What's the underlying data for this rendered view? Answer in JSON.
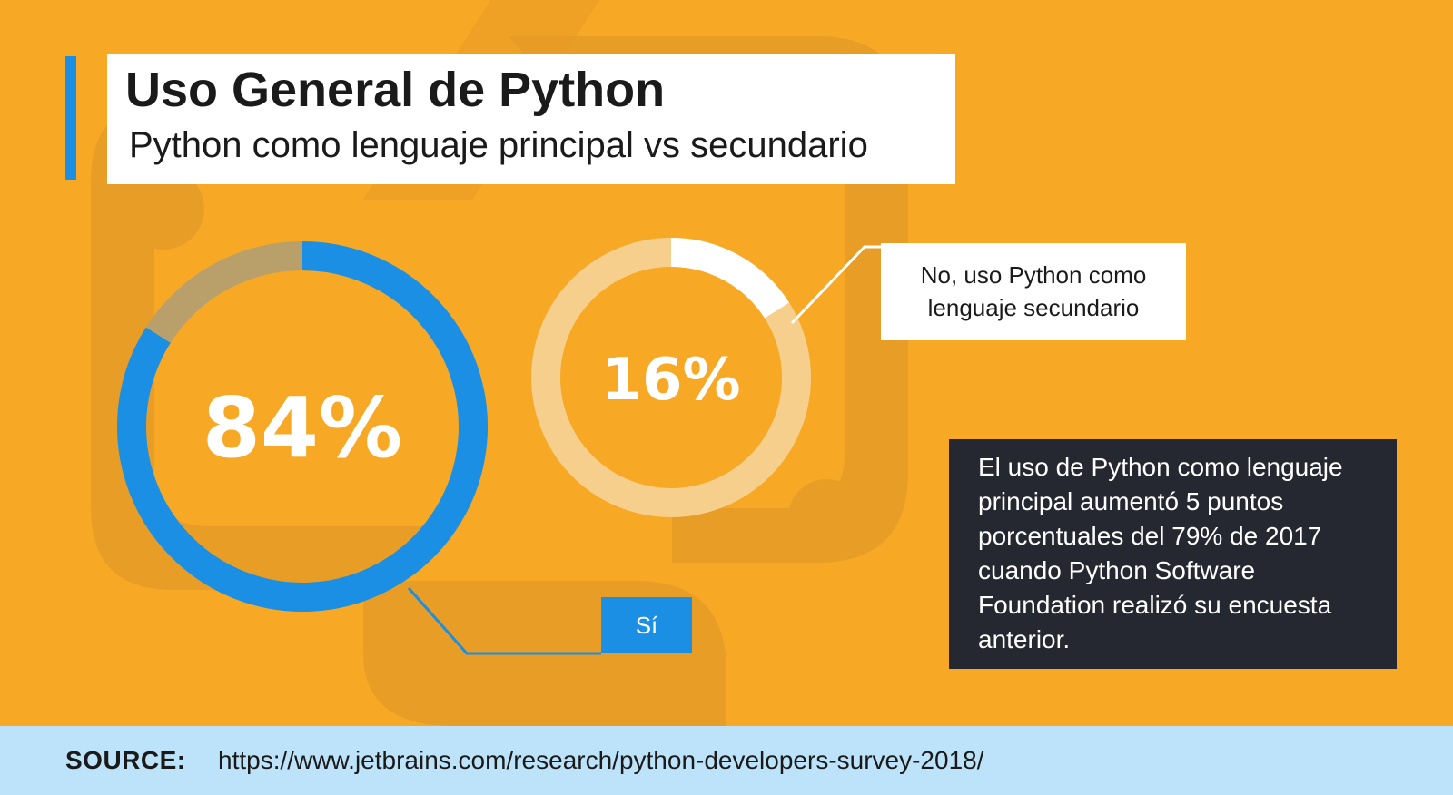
{
  "header": {
    "title": "Uso General de Python",
    "subtitle": "Python como lenguaje principal vs secundario"
  },
  "chart_data": [
    {
      "type": "pie",
      "variant": "donut",
      "value": 84,
      "center_label": "84%",
      "callout": "Sí",
      "color": "#1a8fe3",
      "remainder_color": "#b9a06a"
    },
    {
      "type": "pie",
      "variant": "donut",
      "value": 16,
      "center_label": "16%",
      "callout": "No, uso Python como lenguaje secundario",
      "color": "#ffffff",
      "remainder_color": "#f6cf8d"
    }
  ],
  "note": "El uso de Python como lenguaje principal aumentó 5 puntos porcentuales del 79% de 2017 cuando Python Software Foundation realizó su encuesta anterior.",
  "source": {
    "label": "SOURCE:",
    "url": "https://www.jetbrains.com/research/python-developers-survey-2018/"
  }
}
